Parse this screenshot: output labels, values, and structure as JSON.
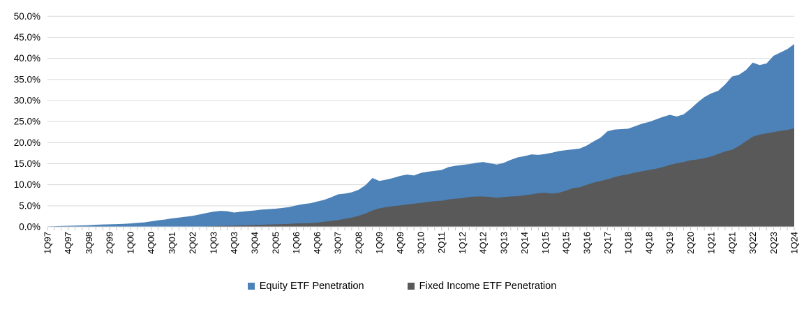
{
  "chart_data": {
    "type": "area",
    "title": "",
    "xlabel": "",
    "ylabel": "",
    "ylim": [
      0,
      50
    ],
    "y_tick_step": 5,
    "y_tick_labels": [
      "0.0%",
      "5.0%",
      "10.0%",
      "15.0%",
      "20.0%",
      "25.0%",
      "30.0%",
      "35.0%",
      "40.0%",
      "45.0%",
      "50.0%"
    ],
    "x_tick_interval": 3,
    "grid": "horizontal",
    "legend_position": "bottom",
    "overlay": true,
    "x": [
      "1Q97",
      "2Q97",
      "3Q97",
      "4Q97",
      "1Q98",
      "2Q98",
      "3Q98",
      "4Q98",
      "1Q99",
      "2Q99",
      "3Q99",
      "4Q99",
      "1Q00",
      "2Q00",
      "3Q00",
      "4Q00",
      "1Q01",
      "2Q01",
      "3Q01",
      "4Q01",
      "1Q02",
      "2Q02",
      "3Q02",
      "4Q02",
      "1Q03",
      "2Q03",
      "3Q03",
      "4Q03",
      "1Q04",
      "2Q04",
      "3Q04",
      "4Q04",
      "1Q05",
      "2Q05",
      "3Q05",
      "4Q05",
      "1Q06",
      "2Q06",
      "3Q06",
      "4Q06",
      "1Q07",
      "2Q07",
      "3Q07",
      "4Q07",
      "1Q08",
      "2Q08",
      "3Q08",
      "4Q08",
      "1Q09",
      "2Q09",
      "3Q09",
      "4Q09",
      "1Q10",
      "2Q10",
      "3Q10",
      "4Q10",
      "1Q11",
      "2Q11",
      "3Q11",
      "4Q11",
      "1Q12",
      "2Q12",
      "3Q12",
      "4Q12",
      "1Q13",
      "2Q13",
      "3Q13",
      "4Q13",
      "1Q14",
      "2Q14",
      "3Q14",
      "4Q14",
      "1Q15",
      "2Q15",
      "3Q15",
      "4Q15",
      "1Q16",
      "2Q16",
      "3Q16",
      "4Q16",
      "1Q17",
      "2Q17",
      "3Q17",
      "4Q17",
      "1Q18",
      "2Q18",
      "3Q18",
      "4Q18",
      "1Q19",
      "2Q19",
      "3Q19",
      "4Q19",
      "1Q20",
      "2Q20",
      "3Q20",
      "4Q20",
      "1Q21",
      "2Q21",
      "3Q21",
      "4Q21",
      "1Q22",
      "2Q22",
      "3Q22",
      "4Q22",
      "1Q23",
      "2Q23",
      "3Q23",
      "4Q23",
      "1Q24"
    ],
    "series": [
      {
        "name": "Equity ETF Penetration",
        "color": "#4C82B8",
        "values": [
          0.1,
          0.15,
          0.2,
          0.25,
          0.3,
          0.35,
          0.4,
          0.5,
          0.55,
          0.6,
          0.65,
          0.7,
          0.8,
          0.95,
          1.05,
          1.3,
          1.55,
          1.75,
          2.0,
          2.2,
          2.4,
          2.6,
          2.95,
          3.3,
          3.6,
          3.8,
          3.7,
          3.4,
          3.6,
          3.75,
          3.9,
          4.1,
          4.2,
          4.3,
          4.5,
          4.7,
          5.1,
          5.4,
          5.6,
          6.0,
          6.4,
          7.0,
          7.7,
          7.9,
          8.2,
          8.8,
          9.9,
          11.6,
          10.9,
          11.2,
          11.6,
          12.1,
          12.4,
          12.2,
          12.8,
          13.1,
          13.3,
          13.5,
          14.2,
          14.5,
          14.7,
          14.9,
          15.2,
          15.4,
          15.1,
          14.8,
          15.2,
          15.9,
          16.5,
          16.8,
          17.2,
          17.1,
          17.3,
          17.6,
          18.0,
          18.2,
          18.4,
          18.6,
          19.3,
          20.3,
          21.2,
          22.7,
          23.1,
          23.2,
          23.3,
          23.9,
          24.5,
          24.9,
          25.5,
          26.1,
          26.6,
          26.2,
          26.7,
          28.0,
          29.5,
          30.8,
          31.7,
          32.3,
          33.8,
          35.7,
          36.1,
          37.2,
          39.0,
          38.4,
          38.8,
          40.6,
          41.4,
          42.2,
          43.4
        ]
      },
      {
        "name": "Fixed Income ETF Penetration",
        "color": "#595959",
        "values": [
          0,
          0,
          0,
          0,
          0,
          0,
          0,
          0,
          0,
          0,
          0,
          0,
          0,
          0,
          0,
          0,
          0,
          0,
          0,
          0,
          0,
          0,
          0.05,
          0.1,
          0.15,
          0.2,
          0.25,
          0.3,
          0.35,
          0.4,
          0.45,
          0.5,
          0.55,
          0.6,
          0.65,
          0.7,
          0.8,
          0.85,
          0.9,
          1.0,
          1.2,
          1.4,
          1.6,
          1.9,
          2.2,
          2.6,
          3.2,
          3.9,
          4.4,
          4.7,
          4.9,
          5.1,
          5.3,
          5.5,
          5.7,
          5.9,
          6.1,
          6.2,
          6.5,
          6.7,
          6.8,
          7.1,
          7.2,
          7.2,
          7.1,
          6.9,
          7.1,
          7.2,
          7.3,
          7.5,
          7.7,
          8.0,
          8.1,
          7.9,
          8.1,
          8.6,
          9.2,
          9.4,
          10.0,
          10.5,
          10.9,
          11.3,
          11.8,
          12.2,
          12.5,
          12.9,
          13.2,
          13.5,
          13.8,
          14.2,
          14.7,
          15.1,
          15.4,
          15.8,
          16.0,
          16.3,
          16.7,
          17.3,
          17.9,
          18.3,
          19.2,
          20.3,
          21.4,
          21.9,
          22.2,
          22.5,
          22.8,
          23.0,
          23.4
        ]
      }
    ]
  },
  "style": {
    "gridline_color": "#D9D9D9",
    "axis_color": "#D9D9D9",
    "tick_color": "#BFBFBF",
    "label_color": "#000000"
  }
}
